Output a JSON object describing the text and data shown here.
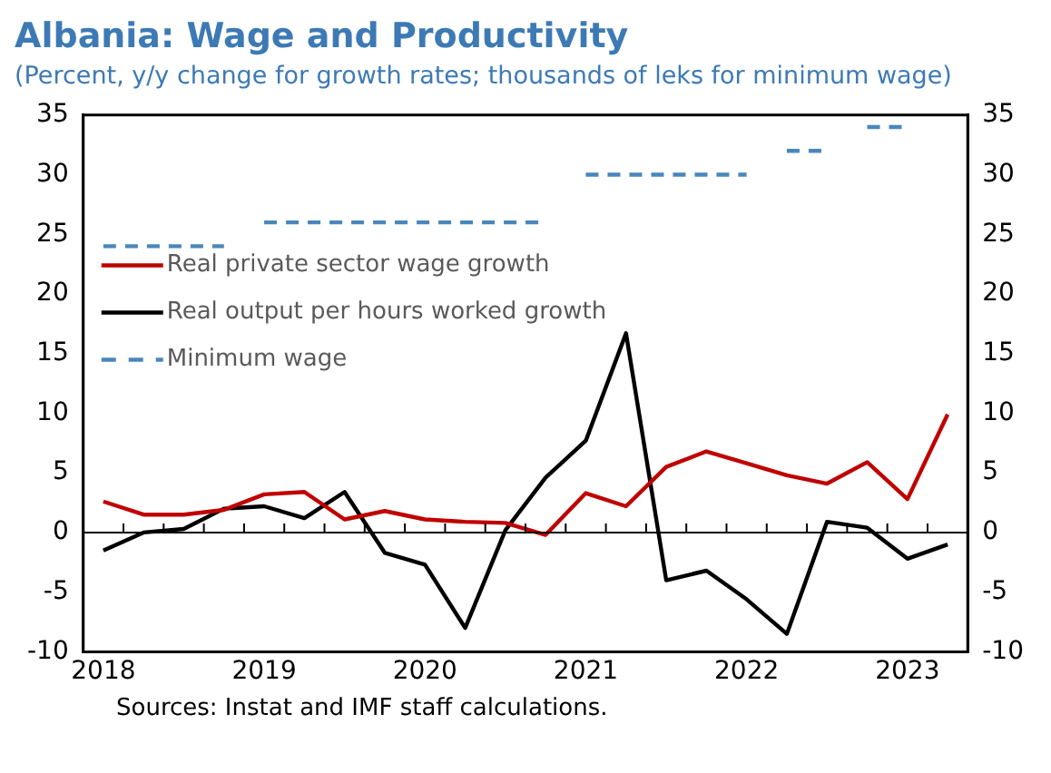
{
  "chart_data": {
    "type": "line",
    "title": "Albania: Wage and Productivity",
    "subtitle": "(Percent, y/y change for growth rates; thousands of leks for minimum wage)",
    "categories": [
      "2018",
      null,
      null,
      null,
      "2019",
      null,
      null,
      null,
      "2020",
      null,
      null,
      null,
      "2021",
      null,
      null,
      null,
      "2022",
      null,
      null,
      null,
      "2023",
      null
    ],
    "series": [
      {
        "name": "Real private sector wage growth",
        "color": "#c00000",
        "values": [
          2.6,
          1.5,
          1.5,
          1.9,
          3.2,
          3.4,
          1.1,
          1.8,
          1.1,
          0.9,
          0.8,
          -0.2,
          3.3,
          2.2,
          5.5,
          6.8,
          5.8,
          4.8,
          4.1,
          5.9,
          2.8,
          9.9
        ]
      },
      {
        "name": "Real output per hours worked growth",
        "color": "#000000",
        "values": [
          -1.5,
          0,
          0.3,
          2.0,
          2.2,
          1.2,
          3.4,
          -1.7,
          -2.7,
          -8.0,
          0.2,
          4.6,
          7.7,
          16.7,
          -4.0,
          -3.2,
          -5.6,
          -8.5,
          0.9,
          0.4,
          -2.2,
          -1.0
        ]
      },
      {
        "name": "Minimum wage",
        "color": "#4a86bb",
        "line_style": "dashed",
        "values": [
          24,
          24,
          24,
          24,
          26,
          26,
          26,
          26,
          26,
          26,
          26,
          26,
          30,
          30,
          30,
          30,
          30,
          32,
          32,
          34,
          34,
          null
        ]
      }
    ],
    "ylim": [
      -10,
      35
    ],
    "yticks": [
      -10,
      -5,
      0,
      5,
      10,
      15,
      20,
      25,
      30,
      35
    ],
    "y2lim": [
      -10,
      35
    ],
    "y2ticks": [
      -10,
      -5,
      0,
      5,
      10,
      15,
      20,
      25,
      30,
      35
    ],
    "ref_lines": [
      {
        "axis": "y",
        "value": 0,
        "color": "#000000"
      }
    ],
    "grid": false,
    "legend": "top left",
    "marker": "none",
    "annotations": [
      "Sources: Instat and IMF staff calculations."
    ]
  }
}
